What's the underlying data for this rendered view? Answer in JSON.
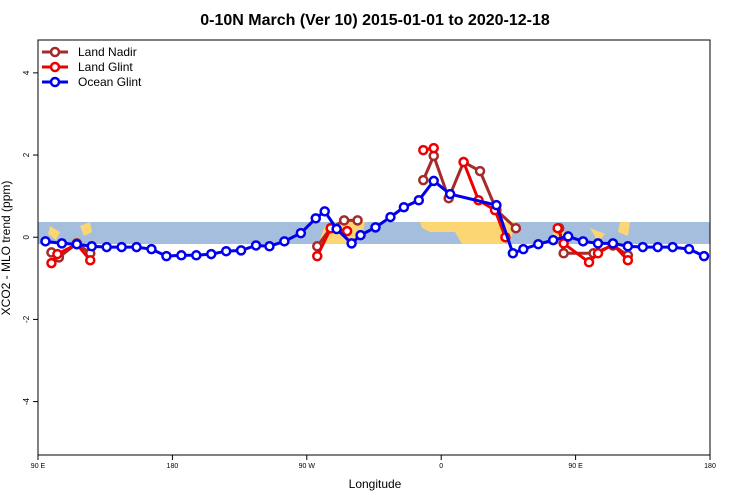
{
  "chart_data": {
    "type": "line",
    "title": "0-10N March (Ver 10)   2015-01-01 to 2020-12-18",
    "xlabel": "Longitude",
    "ylabel": "XCO2 - MLO trend (ppm)",
    "xlim": [
      90,
      540
    ],
    "ylim": [
      -5.3,
      4.8
    ],
    "xticks": [
      {
        "value": 90,
        "label": "90 E"
      },
      180,
      {
        "value": 270,
        "label": "90 W"
      },
      {
        "value": 360,
        "label": "0"
      },
      {
        "value": 450,
        "label": "90 E"
      },
      {
        "value": 540,
        "label": "180"
      }
    ],
    "yticks": [
      -4,
      -2,
      0,
      2,
      4
    ],
    "legend": "top-left",
    "series": [
      {
        "name": "Land Nadir",
        "color": "#a52a2a",
        "x": [
          99,
          104,
          116,
          125,
          null,
          277,
          286,
          295,
          304,
          null,
          348,
          355,
          365,
          375,
          386,
          397,
          410,
          null,
          439,
          442,
          462,
          475,
          485
        ],
        "values": [
          -0.37,
          -0.49,
          -0.15,
          -0.39,
          null,
          -0.22,
          0.22,
          0.41,
          0.41,
          null,
          1.39,
          1.98,
          0.95,
          1.83,
          1.61,
          0.66,
          0.22,
          null,
          0.22,
          -0.39,
          -0.39,
          -0.2,
          -0.44
        ]
      },
      {
        "name": "Land Glint",
        "color": "#ee0000",
        "x": [
          99,
          103,
          116,
          125,
          null,
          277,
          286,
          297,
          null,
          348,
          355,
          null,
          375,
          385,
          396,
          403,
          null,
          438,
          442,
          459,
          465,
          475,
          485
        ],
        "values": [
          -0.63,
          -0.41,
          -0.17,
          -0.56,
          null,
          -0.46,
          0.22,
          0.15,
          null,
          2.12,
          2.17,
          null,
          1.83,
          0.9,
          0.66,
          0,
          null,
          0.22,
          -0.15,
          -0.61,
          -0.39,
          -0.17,
          -0.56
        ]
      },
      {
        "name": "Ocean Glint",
        "color": "#0000ee",
        "x": [
          95,
          106,
          116,
          126,
          136,
          146,
          156,
          166,
          176,
          186,
          196,
          206,
          216,
          226,
          236,
          245,
          255,
          266,
          276,
          282,
          290,
          300,
          306,
          316,
          326,
          335,
          345,
          355,
          366,
          397,
          408,
          415,
          425,
          435,
          445,
          455,
          465,
          475,
          485,
          495,
          505,
          515,
          526,
          536
        ],
        "values": [
          -0.1,
          -0.15,
          -0.17,
          -0.22,
          -0.24,
          -0.24,
          -0.24,
          -0.29,
          -0.46,
          -0.44,
          -0.44,
          -0.41,
          -0.34,
          -0.32,
          -0.2,
          -0.22,
          -0.1,
          0.1,
          0.46,
          0.63,
          0.2,
          -0.15,
          0.05,
          0.24,
          0.49,
          0.73,
          0.9,
          1.37,
          1.05,
          0.78,
          -0.39,
          -0.29,
          -0.17,
          -0.07,
          0.02,
          -0.1,
          -0.15,
          -0.15,
          -0.22,
          -0.24,
          -0.24,
          -0.24,
          -0.29,
          -0.46
        ]
      }
    ]
  }
}
